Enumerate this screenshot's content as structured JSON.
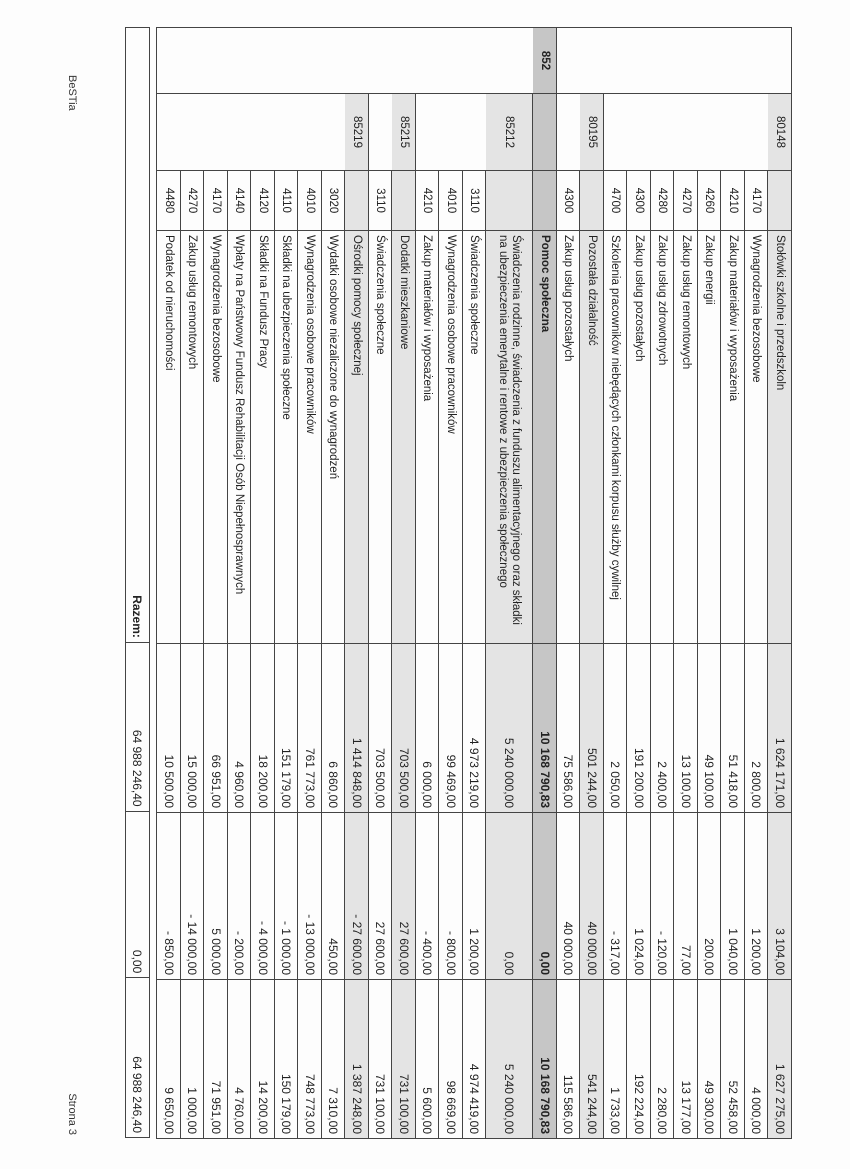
{
  "rows": [
    {
      "level": "rozdzial",
      "dzial": "",
      "rozdzial": "80148",
      "paragraf": "",
      "text": "Stołówki szkolne i przedszkoln",
      "plan": "1 624 171,00",
      "change": "3 104,00",
      "after": "1 627 275,00"
    },
    {
      "level": "paragraf",
      "dzial": "",
      "rozdzial": "",
      "paragraf": "4170",
      "text": "Wynagrodzenia bezosobowe",
      "plan": "2 800,00",
      "change": "1 200,00",
      "after": "4 000,00"
    },
    {
      "level": "paragraf",
      "dzial": "",
      "rozdzial": "",
      "paragraf": "4210",
      "text": "Zakup materiałów i wyposażenia",
      "plan": "51 418,00",
      "change": "1 040,00",
      "after": "52 458,00"
    },
    {
      "level": "paragraf",
      "dzial": "",
      "rozdzial": "",
      "paragraf": "4260",
      "text": "Zakup energii",
      "plan": "49 100,00",
      "change": "200,00",
      "after": "49 300,00"
    },
    {
      "level": "paragraf",
      "dzial": "",
      "rozdzial": "",
      "paragraf": "4270",
      "text": "Zakup usług remontowych",
      "plan": "13 100,00",
      "change": "77,00",
      "after": "13 177,00"
    },
    {
      "level": "paragraf",
      "dzial": "",
      "rozdzial": "",
      "paragraf": "4280",
      "text": "Zakup usług zdrowotnych",
      "plan": "2 400,00",
      "change": "- 120,00",
      "after": "2 280,00"
    },
    {
      "level": "paragraf",
      "dzial": "",
      "rozdzial": "",
      "paragraf": "4300",
      "text": "Zakup usług pozostałych",
      "plan": "191 200,00",
      "change": "1 024,00",
      "after": "192 224,00"
    },
    {
      "level": "paragraf",
      "dzial": "",
      "rozdzial": "",
      "paragraf": "4700",
      "text": "Szkolenia pracowników niebędących członkami korpusu służby cywilnej",
      "plan": "2 050,00",
      "change": "- 317,00",
      "after": "1 733,00"
    },
    {
      "level": "rozdzial",
      "dzial": "",
      "rozdzial": "80195",
      "paragraf": "",
      "text": "Pozostała działalność",
      "plan": "501 244,00",
      "change": "40 000,00",
      "after": "541 244,00"
    },
    {
      "level": "paragraf",
      "dzial": "",
      "rozdzial": "",
      "paragraf": "4300",
      "text": "Zakup usług pozostałych",
      "plan": "75 586,00",
      "change": "40 000,00",
      "after": "115 586,00"
    },
    {
      "level": "dzial",
      "dzial": "852",
      "rozdzial": "",
      "paragraf": "",
      "text": "Pomoc społeczna",
      "plan": "10 168 790,83",
      "change": "0,00",
      "after": "10 168 790,83"
    },
    {
      "level": "rozdzial",
      "tall": true,
      "dzial": "",
      "rozdzial": "85212",
      "paragraf": "",
      "text": "Świadczenia rodzinne, świadczenia z funduszu alimentacyjnego oraz składki na ubezpieczenia emerytalne i rentowe z ubezpieczenia społecznego",
      "plan": "5 240 000,00",
      "change": "0,00",
      "after": "5 240 000,00"
    },
    {
      "level": "paragraf",
      "dzial": "",
      "rozdzial": "",
      "paragraf": "3110",
      "text": "Świadczenia społeczne",
      "plan": "4 973 219,00",
      "change": "1 200,00",
      "after": "4 974 419,00"
    },
    {
      "level": "paragraf",
      "dzial": "",
      "rozdzial": "",
      "paragraf": "4010",
      "text": "Wynagrodzenia osobowe pracowników",
      "plan": "99 469,00",
      "change": "- 800,00",
      "after": "98 669,00"
    },
    {
      "level": "paragraf",
      "dzial": "",
      "rozdzial": "",
      "paragraf": "4210",
      "text": "Zakup materiałów i wyposażenia",
      "plan": "6 000,00",
      "change": "- 400,00",
      "after": "5 600,00"
    },
    {
      "level": "rozdzial",
      "dzial": "",
      "rozdzial": "85215",
      "paragraf": "",
      "text": "Dodatki mieszkaniowe",
      "plan": "703 500,00",
      "change": "27 600,00",
      "after": "731 100,00"
    },
    {
      "level": "paragraf",
      "dzial": "",
      "rozdzial": "",
      "paragraf": "3110",
      "text": "Świadczenia społeczne",
      "plan": "703 500,00",
      "change": "27 600,00",
      "after": "731 100,00"
    },
    {
      "level": "rozdzial",
      "dzial": "",
      "rozdzial": "85219",
      "paragraf": "",
      "text": "Ośrodki pomocy społecznej",
      "plan": "1 414 848,00",
      "change": "- 27 600,00",
      "after": "1 387 248,00"
    },
    {
      "level": "paragraf",
      "dzial": "",
      "rozdzial": "",
      "paragraf": "3020",
      "text": "Wydatki osobowe niezaliczone do wynagrodzeń",
      "plan": "6 860,00",
      "change": "450,00",
      "after": "7 310,00"
    },
    {
      "level": "paragraf",
      "dzial": "",
      "rozdzial": "",
      "paragraf": "4010",
      "text": "Wynagrodzenia osobowe pracowników",
      "plan": "761 773,00",
      "change": "- 13 000,00",
      "after": "748 773,00"
    },
    {
      "level": "paragraf",
      "dzial": "",
      "rozdzial": "",
      "paragraf": "4110",
      "text": "Składki na ubezpieczenia społeczne",
      "plan": "151 179,00",
      "change": "- 1 000,00",
      "after": "150 179,00"
    },
    {
      "level": "paragraf",
      "dzial": "",
      "rozdzial": "",
      "paragraf": "4120",
      "text": "Składki na Fundusz Pracy",
      "plan": "18 200,00",
      "change": "- 4 000,00",
      "after": "14 200,00"
    },
    {
      "level": "paragraf",
      "dzial": "",
      "rozdzial": "",
      "paragraf": "4140",
      "text": "Wpłaty na Państwowy Fundusz Rehabilitacji Osób Niepełnosprawnych",
      "plan": "4 960,00",
      "change": "- 200,00",
      "after": "4 760,00"
    },
    {
      "level": "paragraf",
      "dzial": "",
      "rozdzial": "",
      "paragraf": "4170",
      "text": "Wynagrodzenia bezosobowe",
      "plan": "66 951,00",
      "change": "5 000,00",
      "after": "71 951,00"
    },
    {
      "level": "paragraf",
      "dzial": "",
      "rozdzial": "",
      "paragraf": "4270",
      "text": "Zakup usług remontowych",
      "plan": "15 000,00",
      "change": "- 14 000,00",
      "after": "1 000,00"
    },
    {
      "level": "paragraf",
      "dzial": "",
      "rozdzial": "",
      "paragraf": "4480",
      "text": "Podatek od nieruchomości",
      "plan": "10 500,00",
      "change": "- 850,00",
      "after": "9 650,00"
    }
  ],
  "total": {
    "label": "Razem:",
    "plan": "64 988 246,40",
    "change": "0,00",
    "after": "64 988 246,40"
  },
  "footer": {
    "left": "BeSTia",
    "right": "Strona 3"
  },
  "colors": {
    "section_shade": "#e4e4e4",
    "division_shade": "#c6c6c6"
  }
}
